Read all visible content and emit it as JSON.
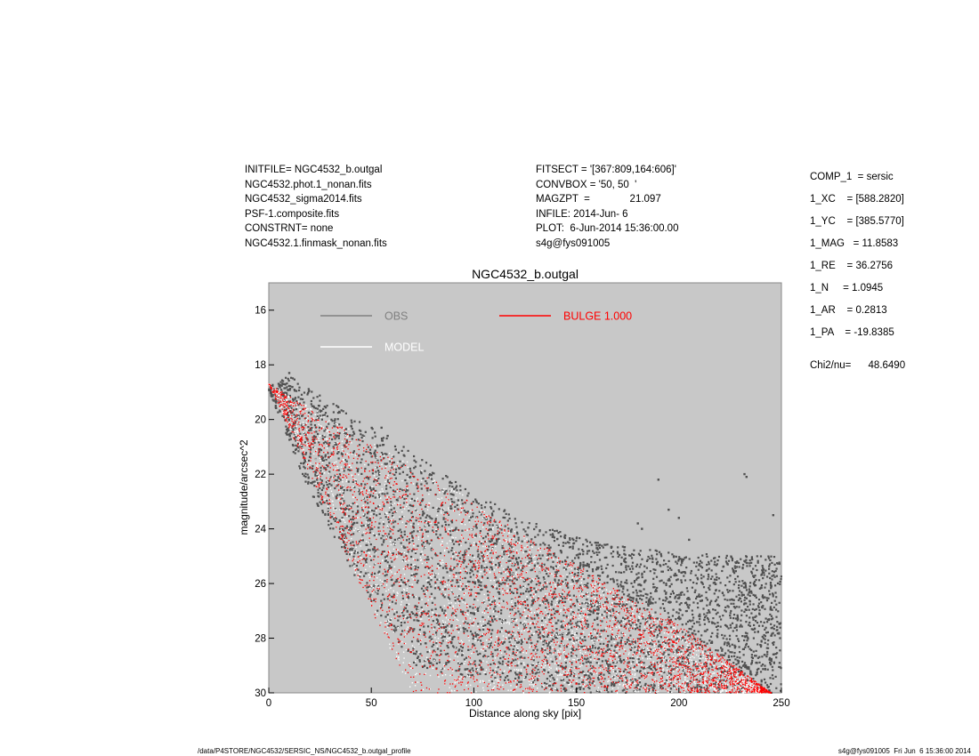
{
  "header": {
    "left": [
      "INITFILE= NGC4532_b.outgal",
      "NGC4532.phot.1_nonan.fits",
      "NGC4532_sigma2014.fits",
      "PSF-1.composite.fits",
      "CONSTRNT= none",
      "NGC4532.1.finmask_nonan.fits"
    ],
    "middle": [
      "FITSECT = '[367:809,164:606]'",
      "CONVBOX = '50, 50  '",
      "MAGZPT  =              21.097",
      "INFILE: 2014-Jun- 6",
      "PLOT:  6-Jun-2014 15:36:00.00",
      "s4g@fys091005"
    ]
  },
  "components": [
    "COMP_1  = sersic",
    "1_XC    = [588.2820]",
    "1_YC    = [385.5770]",
    "1_MAG   = 11.8583",
    "1_RE    = 36.2756",
    "1_N     = 1.0945",
    "1_AR    = 0.2813",
    "1_PA    = -19.8385"
  ],
  "chi2": "Chi2/nu=      48.6490",
  "footer": {
    "left": "/data/P4STORE/NGC4532/SERSIC_NS/NGC4532_b.outgal_profile",
    "right": "s4g@fys091005  Fri Jun  6 15:36:00 2014"
  },
  "chart_data": {
    "type": "scatter",
    "title": "NGC4532_b.outgal",
    "xlabel": "Distance along sky [pix]",
    "ylabel": "magnitude/arcsec^2",
    "xlim": [
      0,
      250
    ],
    "ylim": [
      30,
      15
    ],
    "y_inverted": true,
    "xticks": [
      0,
      50,
      100,
      150,
      200,
      250
    ],
    "yticks": [
      16,
      18,
      20,
      22,
      24,
      26,
      28,
      30
    ],
    "background": "#c8c8c8",
    "legend": [
      {
        "label": "OBS",
        "color": "#808080"
      },
      {
        "label": "MODEL",
        "color": "#ffffff"
      },
      {
        "label": "BULGE  1.000",
        "color": "#ff0000"
      }
    ],
    "series": [
      {
        "name": "OBS",
        "color": "#505050",
        "upper_envelope": [
          [
            0,
            18.8
          ],
          [
            10,
            18.4
          ],
          [
            20,
            18.9
          ],
          [
            40,
            19.8
          ],
          [
            60,
            20.7
          ],
          [
            80,
            21.7
          ],
          [
            100,
            22.7
          ],
          [
            130,
            23.8
          ],
          [
            160,
            24.5
          ],
          [
            200,
            24.9
          ],
          [
            250,
            25.0
          ]
        ],
        "lower_envelope": [
          [
            0,
            19.0
          ],
          [
            10,
            20.8
          ],
          [
            20,
            22.7
          ],
          [
            40,
            25.5
          ],
          [
            60,
            27.8
          ],
          [
            70,
            29.0
          ],
          [
            100,
            29.5
          ],
          [
            150,
            30.0
          ],
          [
            250,
            30.0
          ]
        ]
      },
      {
        "name": "MODEL",
        "color": "#ffffff",
        "upper_envelope": [
          [
            0,
            18.7
          ],
          [
            60,
            21.2
          ],
          [
            100,
            23.0
          ],
          [
            150,
            25.5
          ],
          [
            200,
            27.7
          ],
          [
            240,
            29.9
          ]
        ],
        "lower_envelope": [
          [
            0,
            18.7
          ],
          [
            30,
            23.5
          ],
          [
            50,
            27.0
          ],
          [
            70,
            30.0
          ]
        ]
      },
      {
        "name": "BULGE  1.000",
        "color": "#ff0000",
        "upper_envelope": [
          [
            0,
            18.7
          ],
          [
            50,
            20.9
          ],
          [
            100,
            23.1
          ],
          [
            150,
            25.3
          ],
          [
            200,
            27.5
          ],
          [
            245,
            30.0
          ]
        ],
        "lower_envelope": [
          [
            0,
            18.7
          ],
          [
            20,
            22.0
          ],
          [
            40,
            25.4
          ],
          [
            60,
            28.5
          ],
          [
            70,
            30.0
          ]
        ]
      }
    ],
    "outlier_points": [
      [
        10,
        18.3
      ],
      [
        55,
        20.3
      ],
      [
        58,
        20.6
      ],
      [
        62,
        21.1
      ],
      [
        65,
        21.7
      ],
      [
        69,
        22.1
      ],
      [
        190,
        22.2
      ],
      [
        195,
        23.3
      ],
      [
        232,
        22.0
      ],
      [
        233,
        22.1
      ],
      [
        246,
        23.5
      ],
      [
        200,
        23.6
      ],
      [
        180,
        23.8
      ],
      [
        205,
        24.4
      ],
      [
        182,
        24.0
      ]
    ]
  }
}
